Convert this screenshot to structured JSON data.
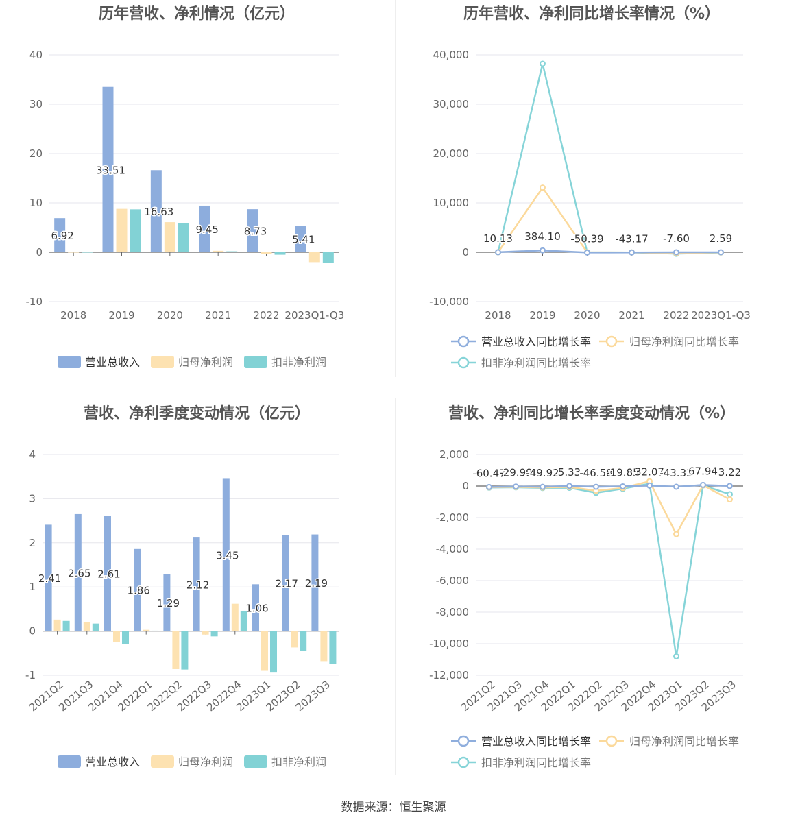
{
  "source": "数据来源：恒生聚源",
  "colors": {
    "revenue": "#8daddd",
    "parent_profit": "#fde2b1",
    "deducted_profit": "#82d2d5",
    "revenue_line": "#8faedd",
    "parent_line": "#fbd99b",
    "deducted_line": "#86d4d8"
  },
  "chart_data": [
    {
      "type": "bar",
      "title": "历年营收、净利情况（亿元）",
      "categories": [
        "2018",
        "2019",
        "2020",
        "2021",
        "2022",
        "2023Q1-Q3"
      ],
      "ylim": [
        -10,
        40
      ],
      "yticks": [
        "-10",
        "0",
        "10",
        "20",
        "30",
        "40"
      ],
      "legend_position": "bottom",
      "series": [
        {
          "name": "营业总收入",
          "values": [
            6.92,
            33.51,
            16.63,
            9.45,
            8.73,
            5.41
          ],
          "labels": [
            "6.92",
            "33.51",
            "16.63",
            "9.45",
            "8.73",
            "5.41"
          ]
        },
        {
          "name": "归母净利润",
          "values": [
            0,
            8.8,
            6.1,
            0.3,
            -0.3,
            -2.0
          ]
        },
        {
          "name": "扣非净利润",
          "values": [
            0,
            8.7,
            5.9,
            0.2,
            -0.5,
            -2.2
          ]
        }
      ]
    },
    {
      "type": "line",
      "title": "历年营收、净利同比增长率情况（%）",
      "categories": [
        "2018",
        "2019",
        "2020",
        "2021",
        "2022",
        "2023Q1-Q3"
      ],
      "ylim": [
        -10000,
        40000
      ],
      "yticks": [
        "-10,000",
        "0",
        "10,000",
        "20,000",
        "30,000",
        "40,000"
      ],
      "legend_position": "bottom",
      "series": [
        {
          "name": "营业总收入同比增长率",
          "values": [
            10.13,
            384.1,
            -50.39,
            -43.17,
            -7.6,
            2.59
          ],
          "labels": [
            "10.13",
            "384.10",
            "-50.39",
            "-43.17",
            "-7.60",
            "2.59"
          ]
        },
        {
          "name": "归母净利润同比增长率",
          "values": [
            0,
            13100,
            0,
            -30,
            -200,
            -30
          ]
        },
        {
          "name": "扣非净利润同比增长率",
          "values": [
            0,
            38200,
            0,
            -30,
            -300,
            -50
          ]
        }
      ]
    },
    {
      "type": "bar",
      "title": "营收、净利季度变动情况（亿元）",
      "categories": [
        "2021Q2",
        "2021Q3",
        "2021Q4",
        "2022Q1",
        "2022Q2",
        "2022Q3",
        "2022Q4",
        "2023Q1",
        "2023Q2",
        "2023Q3"
      ],
      "ylim": [
        -1,
        4
      ],
      "yticks": [
        "-1",
        "0",
        "1",
        "2",
        "3",
        "4"
      ],
      "legend_position": "bottom",
      "series": [
        {
          "name": "营业总收入",
          "values": [
            2.41,
            2.65,
            2.61,
            1.86,
            1.29,
            2.12,
            3.45,
            1.06,
            2.17,
            2.19
          ],
          "labels": [
            "2.41",
            "2.65",
            "2.61",
            "1.86",
            "1.29",
            "2.12",
            "3.45",
            "1.06",
            "2.17",
            "2.19"
          ]
        },
        {
          "name": "归母净利润",
          "values": [
            0.26,
            0.2,
            -0.25,
            0.03,
            -0.86,
            -0.08,
            0.62,
            -0.9,
            -0.37,
            -0.68
          ]
        },
        {
          "name": "扣非净利润",
          "values": [
            0.23,
            0.17,
            -0.3,
            0.01,
            -0.87,
            -0.12,
            0.46,
            -0.94,
            -0.45,
            -0.75
          ]
        }
      ]
    },
    {
      "type": "line",
      "title": "营收、净利同比增长率季度变动情况（%）",
      "categories": [
        "2021Q2",
        "2021Q3",
        "2021Q4",
        "2022Q1",
        "2022Q2",
        "2022Q3",
        "2022Q4",
        "2023Q1",
        "2023Q2",
        "2023Q3"
      ],
      "ylim": [
        -12000,
        2000
      ],
      "yticks": [
        "-12,000",
        "-10,000",
        "-8,000",
        "-6,000",
        "-4,000",
        "-2,000",
        "0",
        "2,000"
      ],
      "legend_position": "bottom",
      "series": [
        {
          "name": "营业总收入同比增长率",
          "values": [
            -60.47,
            -29.99,
            -49.92,
            5.33,
            -46.58,
            -19.85,
            32.07,
            -43.33,
            67.94,
            3.22
          ],
          "labels": [
            "-60.47",
            "-29.99",
            "-49.92",
            "5.33",
            "-46.58",
            "-19.85",
            "32.07",
            "-43.33",
            "67.94",
            "3.22"
          ]
        },
        {
          "name": "归母净利润同比增长率",
          "values": [
            -80,
            -60,
            -90,
            -60,
            -300,
            -120,
            300,
            -3050,
            50,
            -850
          ]
        },
        {
          "name": "扣非净利润同比增长率",
          "values": [
            -100,
            -80,
            -120,
            -110,
            -430,
            -170,
            150,
            -10800,
            40,
            -520
          ]
        }
      ]
    }
  ]
}
